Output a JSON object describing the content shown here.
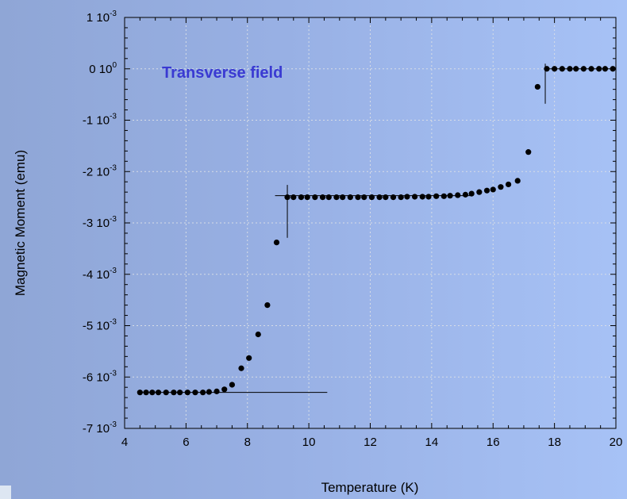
{
  "chart_data": {
    "type": "scatter",
    "title": "",
    "xlabel": "Temperature (K)",
    "ylabel": "Magnetic Moment (emu)",
    "annotation": "Transverse field",
    "xlim": [
      4,
      20
    ],
    "ylim": [
      -0.007,
      0.001
    ],
    "grid": true,
    "x_ticks": [
      {
        "value": 4,
        "label": "4"
      },
      {
        "value": 6,
        "label": "6"
      },
      {
        "value": 8,
        "label": "8"
      },
      {
        "value": 10,
        "label": "10"
      },
      {
        "value": 12,
        "label": "12"
      },
      {
        "value": 14,
        "label": "14"
      },
      {
        "value": 16,
        "label": "16"
      },
      {
        "value": 18,
        "label": "18"
      },
      {
        "value": 20,
        "label": "20"
      }
    ],
    "y_ticks": [
      {
        "value": 0.001,
        "mantissa": "1 10",
        "exponent": "-3"
      },
      {
        "value": 0,
        "mantissa": "0 10",
        "exponent": "0"
      },
      {
        "value": -0.001,
        "mantissa": "-1 10",
        "exponent": "-3"
      },
      {
        "value": -0.002,
        "mantissa": "-2 10",
        "exponent": "-3"
      },
      {
        "value": -0.003,
        "mantissa": "-3 10",
        "exponent": "-3"
      },
      {
        "value": -0.004,
        "mantissa": "-4 10",
        "exponent": "-3"
      },
      {
        "value": -0.005,
        "mantissa": "-5 10",
        "exponent": "-3"
      },
      {
        "value": -0.006,
        "mantissa": "-6 10",
        "exponent": "-3"
      },
      {
        "value": -0.007,
        "mantissa": "-7 10",
        "exponent": "-3"
      }
    ],
    "series": [
      {
        "points": [
          [
            4.5,
            -0.0063
          ],
          [
            4.7,
            -0.0063
          ],
          [
            4.9,
            -0.0063
          ],
          [
            5.1,
            -0.0063
          ],
          [
            5.35,
            -0.0063
          ],
          [
            5.6,
            -0.0063
          ],
          [
            5.8,
            -0.0063
          ],
          [
            6.05,
            -0.0063
          ],
          [
            6.3,
            -0.0063
          ],
          [
            6.55,
            -0.0063
          ],
          [
            6.75,
            -0.00629
          ],
          [
            7.0,
            -0.00628
          ],
          [
            7.25,
            -0.00624
          ],
          [
            7.5,
            -0.00615
          ],
          [
            7.8,
            -0.00583
          ],
          [
            8.05,
            -0.00563
          ],
          [
            8.35,
            -0.00517
          ],
          [
            8.65,
            -0.0046
          ],
          [
            8.95,
            -0.00338
          ],
          [
            9.3,
            -0.0025
          ],
          [
            9.5,
            -0.0025
          ],
          [
            9.75,
            -0.0025
          ],
          [
            9.95,
            -0.0025
          ],
          [
            10.2,
            -0.0025
          ],
          [
            10.45,
            -0.0025
          ],
          [
            10.65,
            -0.0025
          ],
          [
            10.9,
            -0.0025
          ],
          [
            11.1,
            -0.0025
          ],
          [
            11.35,
            -0.0025
          ],
          [
            11.6,
            -0.0025
          ],
          [
            11.8,
            -0.0025
          ],
          [
            12.05,
            -0.0025
          ],
          [
            12.3,
            -0.0025
          ],
          [
            12.5,
            -0.0025
          ],
          [
            12.75,
            -0.0025
          ],
          [
            13.0,
            -0.0025
          ],
          [
            13.2,
            -0.00249
          ],
          [
            13.45,
            -0.00249
          ],
          [
            13.7,
            -0.00249
          ],
          [
            13.9,
            -0.00249
          ],
          [
            14.15,
            -0.00248
          ],
          [
            14.4,
            -0.00248
          ],
          [
            14.6,
            -0.00247
          ],
          [
            14.85,
            -0.00246
          ],
          [
            15.1,
            -0.00245
          ],
          [
            15.3,
            -0.00243
          ],
          [
            15.55,
            -0.0024
          ],
          [
            15.8,
            -0.00237
          ],
          [
            16.0,
            -0.00235
          ],
          [
            16.25,
            -0.0023
          ],
          [
            16.5,
            -0.00225
          ],
          [
            16.8,
            -0.00218
          ],
          [
            17.15,
            -0.00162
          ],
          [
            17.45,
            -0.00035
          ],
          [
            17.75,
            0.0
          ],
          [
            18.0,
            0.0
          ],
          [
            18.25,
            0.0
          ],
          [
            18.5,
            0.0
          ],
          [
            18.7,
            0.0
          ],
          [
            18.95,
            0.0
          ],
          [
            19.2,
            0.0
          ],
          [
            19.45,
            0.0
          ],
          [
            19.65,
            0.0
          ],
          [
            19.9,
            0.0
          ]
        ]
      }
    ],
    "reference_lines": [
      {
        "x1": 4.5,
        "y1": -0.0063,
        "x2": 10.6,
        "y2": -0.0063
      },
      {
        "x1": 9.3,
        "y1": -0.00226,
        "x2": 9.3,
        "y2": -0.00329
      },
      {
        "x1": 8.9,
        "y1": -0.00247,
        "x2": 15.3,
        "y2": -0.00247
      },
      {
        "x1": 17.7,
        "y1": 0.0001,
        "x2": 17.7,
        "y2": -0.00068
      },
      {
        "x1": 17.7,
        "y1": 0.0,
        "x2": 20.0,
        "y2": 0.0
      }
    ]
  }
}
